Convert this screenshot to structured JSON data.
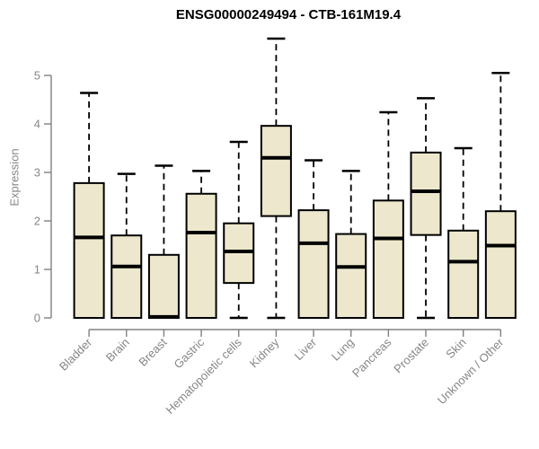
{
  "chart_data": {
    "type": "boxplot",
    "title": "ENSG00000249494 - CTB-161M19.4",
    "ylabel": "Expression",
    "xlabel": "",
    "ylim": [
      -0.25,
      6.05
    ],
    "yticks": [
      0,
      1,
      2,
      3,
      4,
      5
    ],
    "grid": false,
    "legend": false,
    "categories": [
      "Bladder",
      "Brain",
      "Breast",
      "Gastric",
      "Hematopoietic cells",
      "Kidney",
      "Liver",
      "Lung",
      "Pancreas",
      "Prostate",
      "Skin",
      "Unknown / Other"
    ],
    "series": [
      {
        "name": "Bladder",
        "whislo": 0,
        "q1": 0,
        "med": 1.66,
        "q3": 2.78,
        "whishi": 4.64
      },
      {
        "name": "Brain",
        "whislo": 0,
        "q1": 0,
        "med": 1.06,
        "q3": 1.7,
        "whishi": 2.97
      },
      {
        "name": "Breast",
        "whislo": 0,
        "q1": 0,
        "med": 0.02,
        "q3": 1.3,
        "whishi": 3.14
      },
      {
        "name": "Gastric",
        "whislo": 0,
        "q1": 0,
        "med": 1.76,
        "q3": 2.56,
        "whishi": 3.03
      },
      {
        "name": "Hematopoietic cells",
        "whislo": 0,
        "q1": 0.72,
        "med": 1.37,
        "q3": 1.95,
        "whishi": 3.63
      },
      {
        "name": "Kidney",
        "whislo": 0,
        "q1": 2.1,
        "med": 3.3,
        "q3": 3.96,
        "whishi": 5.76
      },
      {
        "name": "Liver",
        "whislo": 0,
        "q1": 0,
        "med": 1.54,
        "q3": 2.22,
        "whishi": 3.25
      },
      {
        "name": "Lung",
        "whislo": 0,
        "q1": 0,
        "med": 1.05,
        "q3": 1.73,
        "whishi": 3.03
      },
      {
        "name": "Pancreas",
        "whislo": 0,
        "q1": 0,
        "med": 1.64,
        "q3": 2.42,
        "whishi": 4.24
      },
      {
        "name": "Prostate",
        "whislo": 0,
        "q1": 1.71,
        "med": 2.61,
        "q3": 3.41,
        "whishi": 4.53
      },
      {
        "name": "Skin",
        "whislo": 0,
        "q1": 0,
        "med": 1.16,
        "q3": 1.8,
        "whishi": 3.5
      },
      {
        "name": "Unknown / Other",
        "whislo": 0,
        "q1": 0,
        "med": 1.49,
        "q3": 2.2,
        "whishi": 5.05
      }
    ],
    "colors": {
      "box_fill": "#EDE8CD",
      "box_border": "#000000",
      "median": "#000000",
      "whisker": "#000000",
      "axis": "#808080",
      "tick_label": "#868686",
      "title": "#000000",
      "background": "#ffffff"
    }
  }
}
